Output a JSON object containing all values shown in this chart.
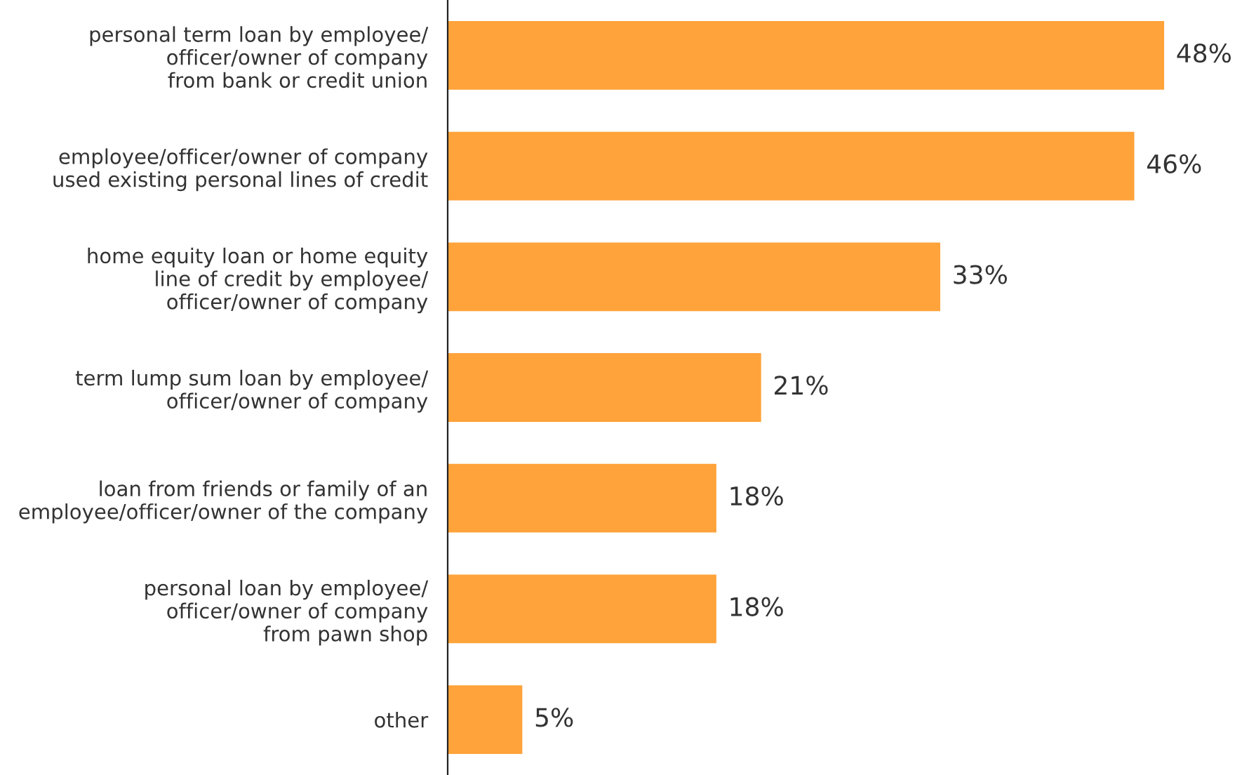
{
  "chart_data": {
    "type": "bar",
    "orientation": "horizontal",
    "categories": [
      "personal term loan by employee/\nofficer/owner of company\nfrom bank or credit union",
      "employee/officer/owner of company\nused existing personal lines of credit",
      "home equity loan or home equity\nline of credit by employee/\nofficer/owner of company",
      "term lump sum loan by employee/\nofficer/owner of company",
      "loan from friends or family of an\nemployee/officer/owner of the company",
      "personal loan by employee/\nofficer/owner of company\nfrom pawn shop",
      "other"
    ],
    "values": [
      48,
      46,
      33,
      21,
      18,
      18,
      5
    ],
    "value_labels": [
      "48%",
      "46%",
      "33%",
      "21%",
      "18%",
      "18%",
      "5%"
    ],
    "color": "#ffa33a",
    "grid": false,
    "legend": false,
    "tick_labels": "y"
  }
}
